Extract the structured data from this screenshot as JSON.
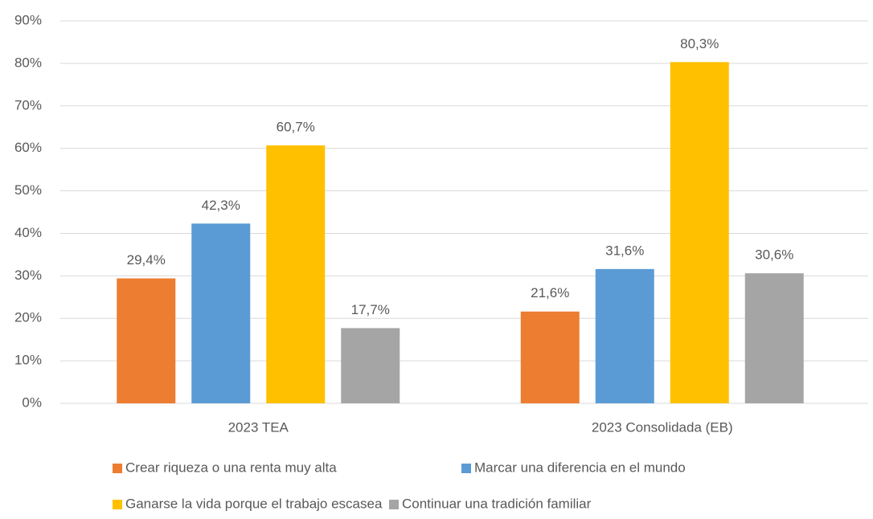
{
  "chart_data": {
    "type": "bar",
    "categories": [
      "2023 TEA",
      "2023 Consolidada (EB)"
    ],
    "series": [
      {
        "name": "Crear riqueza o una renta muy alta",
        "color": "#ed7d31",
        "values": [
          29.4,
          21.6
        ],
        "value_labels": [
          "29,4%",
          "21,6%"
        ]
      },
      {
        "name": "Marcar una diferencia en el mundo",
        "color": "#5b9bd5",
        "values": [
          42.3,
          31.6
        ],
        "value_labels": [
          "42,3%",
          "31,6%"
        ]
      },
      {
        "name": "Ganarse la vida porque el trabajo escasea",
        "color": "#ffc000",
        "values": [
          60.7,
          80.3
        ],
        "value_labels": [
          "60,7%",
          "80,3%"
        ]
      },
      {
        "name": "Continuar una tradición familiar",
        "color": "#a5a5a5",
        "values": [
          17.7,
          30.6
        ],
        "value_labels": [
          "17,7%",
          "30,6%"
        ]
      }
    ],
    "ylim": [
      0,
      90
    ],
    "yticks": [
      {
        "value": 0,
        "label": "0%"
      },
      {
        "value": 10,
        "label": "10%"
      },
      {
        "value": 20,
        "label": "20%"
      },
      {
        "value": 30,
        "label": "30%"
      },
      {
        "value": 40,
        "label": "40%"
      },
      {
        "value": 50,
        "label": "50%"
      },
      {
        "value": 60,
        "label": "60%"
      },
      {
        "value": 70,
        "label": "70%"
      },
      {
        "value": 80,
        "label": "80%"
      },
      {
        "value": 90,
        "label": "90%"
      }
    ],
    "grid": true
  }
}
